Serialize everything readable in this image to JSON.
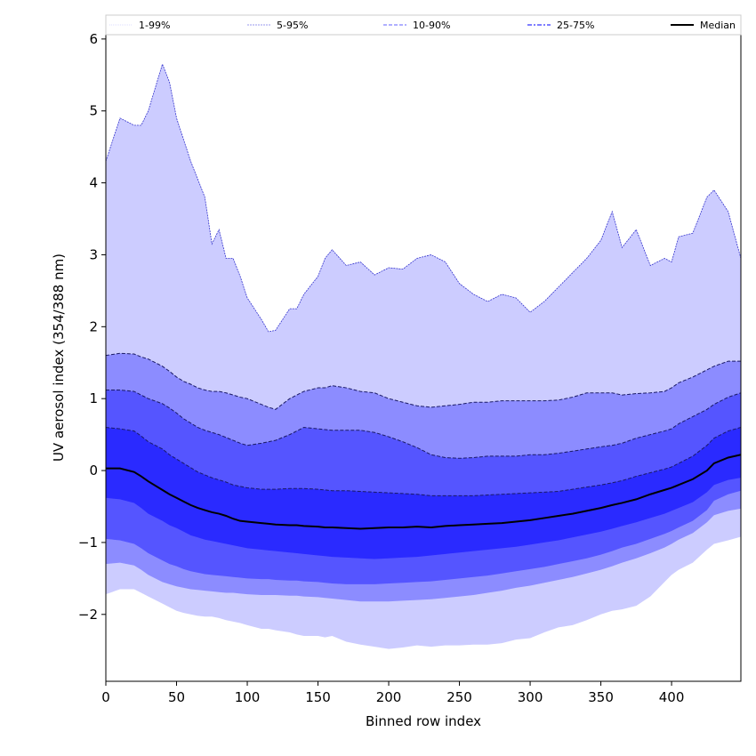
{
  "chart_data": {
    "type": "area",
    "title": "",
    "xlabel": "Binned row index",
    "ylabel": "UV aerosol index (354/388 nm)",
    "xlim": [
      0,
      449
    ],
    "ylim": [
      -2.93,
      6.06
    ],
    "xticks": [
      0,
      50,
      100,
      150,
      200,
      250,
      300,
      350,
      400
    ],
    "yticks": [
      -2,
      -1,
      0,
      1,
      2,
      3,
      4,
      5,
      6
    ],
    "grid": false,
    "legend": {
      "placement": "top",
      "entries": [
        {
          "label": "1-99%",
          "color": "#ccccff",
          "style": "dotted"
        },
        {
          "label": "5-95%",
          "color": "#9999ee",
          "style": "dashed-thin"
        },
        {
          "label": "10-90%",
          "color": "#8080ff",
          "style": "dashed"
        },
        {
          "label": "25-75%",
          "color": "#5555ff",
          "style": "dashdot"
        },
        {
          "label": "Median",
          "color": "#000000",
          "style": "solid"
        }
      ]
    },
    "band_colors": [
      "#ccccff",
      "#8c8cff",
      "#5555ff",
      "#2a2aff"
    ],
    "x": [
      0,
      10,
      20,
      25,
      30,
      40,
      45,
      50,
      55,
      60,
      65,
      70,
      75,
      80,
      85,
      90,
      95,
      100,
      110,
      115,
      120,
      130,
      135,
      140,
      150,
      155,
      160,
      170,
      180,
      190,
      200,
      210,
      220,
      230,
      240,
      250,
      260,
      270,
      280,
      290,
      300,
      310,
      320,
      330,
      340,
      350,
      358,
      365,
      375,
      385,
      395,
      400,
      405,
      415,
      425,
      430,
      440,
      449
    ],
    "series": [
      {
        "name": "p99",
        "values": [
          4.3,
          4.9,
          4.8,
          4.8,
          5.0,
          5.65,
          5.4,
          4.9,
          4.6,
          4.3,
          4.05,
          3.8,
          3.15,
          3.35,
          2.95,
          2.95,
          2.7,
          2.4,
          2.1,
          1.93,
          1.95,
          2.25,
          2.25,
          2.45,
          2.7,
          2.95,
          3.07,
          2.85,
          2.9,
          2.72,
          2.82,
          2.8,
          2.95,
          3.0,
          2.9,
          2.6,
          2.45,
          2.35,
          2.45,
          2.4,
          2.2,
          2.35,
          2.55,
          2.75,
          2.95,
          3.2,
          3.6,
          3.1,
          3.35,
          2.85,
          2.95,
          2.9,
          3.25,
          3.3,
          3.8,
          3.9,
          3.6,
          2.95
        ]
      },
      {
        "name": "p95",
        "values": [
          1.6,
          1.63,
          1.62,
          1.58,
          1.55,
          1.45,
          1.38,
          1.3,
          1.24,
          1.2,
          1.15,
          1.12,
          1.1,
          1.1,
          1.08,
          1.05,
          1.02,
          1.0,
          0.92,
          0.88,
          0.85,
          1.0,
          1.05,
          1.1,
          1.15,
          1.15,
          1.18,
          1.15,
          1.1,
          1.08,
          1.0,
          0.95,
          0.9,
          0.88,
          0.9,
          0.92,
          0.95,
          0.95,
          0.97,
          0.97,
          0.97,
          0.97,
          0.98,
          1.02,
          1.08,
          1.08,
          1.08,
          1.05,
          1.07,
          1.08,
          1.1,
          1.15,
          1.22,
          1.3,
          1.4,
          1.45,
          1.52,
          1.52
        ]
      },
      {
        "name": "p90",
        "values": [
          1.12,
          1.12,
          1.1,
          1.05,
          1.0,
          0.93,
          0.87,
          0.8,
          0.72,
          0.66,
          0.6,
          0.56,
          0.53,
          0.5,
          0.46,
          0.42,
          0.38,
          0.35,
          0.38,
          0.4,
          0.42,
          0.5,
          0.55,
          0.6,
          0.58,
          0.57,
          0.56,
          0.56,
          0.56,
          0.53,
          0.47,
          0.4,
          0.32,
          0.22,
          0.18,
          0.17,
          0.18,
          0.2,
          0.2,
          0.2,
          0.22,
          0.22,
          0.24,
          0.27,
          0.3,
          0.33,
          0.35,
          0.38,
          0.45,
          0.5,
          0.55,
          0.58,
          0.65,
          0.75,
          0.85,
          0.92,
          1.02,
          1.08
        ]
      },
      {
        "name": "p75",
        "values": [
          0.6,
          0.58,
          0.55,
          0.48,
          0.4,
          0.3,
          0.22,
          0.16,
          0.1,
          0.04,
          -0.02,
          -0.06,
          -0.1,
          -0.13,
          -0.16,
          -0.2,
          -0.22,
          -0.24,
          -0.26,
          -0.26,
          -0.26,
          -0.25,
          -0.25,
          -0.25,
          -0.26,
          -0.27,
          -0.28,
          -0.28,
          -0.29,
          -0.3,
          -0.31,
          -0.32,
          -0.33,
          -0.35,
          -0.35,
          -0.35,
          -0.35,
          -0.34,
          -0.33,
          -0.32,
          -0.31,
          -0.3,
          -0.29,
          -0.26,
          -0.23,
          -0.2,
          -0.17,
          -0.14,
          -0.08,
          -0.03,
          0.02,
          0.05,
          0.1,
          0.2,
          0.35,
          0.45,
          0.55,
          0.6
        ]
      },
      {
        "name": "median",
        "values": [
          0.03,
          0.03,
          -0.02,
          -0.08,
          -0.15,
          -0.27,
          -0.33,
          -0.38,
          -0.43,
          -0.48,
          -0.52,
          -0.55,
          -0.58,
          -0.6,
          -0.63,
          -0.67,
          -0.7,
          -0.71,
          -0.73,
          -0.74,
          -0.75,
          -0.76,
          -0.76,
          -0.77,
          -0.78,
          -0.79,
          -0.79,
          -0.8,
          -0.81,
          -0.8,
          -0.79,
          -0.79,
          -0.78,
          -0.79,
          -0.77,
          -0.76,
          -0.75,
          -0.74,
          -0.73,
          -0.71,
          -0.69,
          -0.66,
          -0.63,
          -0.6,
          -0.56,
          -0.52,
          -0.48,
          -0.45,
          -0.4,
          -0.33,
          -0.27,
          -0.24,
          -0.2,
          -0.12,
          0.0,
          0.1,
          0.18,
          0.22
        ]
      },
      {
        "name": "p25",
        "values": [
          -0.38,
          -0.4,
          -0.45,
          -0.52,
          -0.6,
          -0.7,
          -0.76,
          -0.8,
          -0.85,
          -0.9,
          -0.93,
          -0.96,
          -0.98,
          -1.0,
          -1.02,
          -1.04,
          -1.06,
          -1.08,
          -1.1,
          -1.11,
          -1.12,
          -1.14,
          -1.15,
          -1.16,
          -1.18,
          -1.19,
          -1.2,
          -1.21,
          -1.22,
          -1.23,
          -1.22,
          -1.21,
          -1.2,
          -1.18,
          -1.16,
          -1.14,
          -1.12,
          -1.1,
          -1.08,
          -1.06,
          -1.03,
          -1.0,
          -0.97,
          -0.93,
          -0.89,
          -0.85,
          -0.81,
          -0.77,
          -0.72,
          -0.66,
          -0.6,
          -0.56,
          -0.52,
          -0.44,
          -0.3,
          -0.2,
          -0.13,
          -0.1
        ]
      },
      {
        "name": "p10",
        "values": [
          -0.95,
          -0.97,
          -1.02,
          -1.08,
          -1.15,
          -1.25,
          -1.3,
          -1.33,
          -1.37,
          -1.4,
          -1.42,
          -1.44,
          -1.45,
          -1.46,
          -1.47,
          -1.48,
          -1.49,
          -1.5,
          -1.51,
          -1.51,
          -1.52,
          -1.53,
          -1.53,
          -1.54,
          -1.55,
          -1.56,
          -1.57,
          -1.58,
          -1.58,
          -1.58,
          -1.57,
          -1.56,
          -1.55,
          -1.54,
          -1.52,
          -1.5,
          -1.48,
          -1.46,
          -1.43,
          -1.4,
          -1.37,
          -1.34,
          -1.3,
          -1.26,
          -1.22,
          -1.17,
          -1.12,
          -1.07,
          -1.02,
          -0.95,
          -0.88,
          -0.84,
          -0.79,
          -0.7,
          -0.55,
          -0.42,
          -0.33,
          -0.28
        ]
      },
      {
        "name": "p5",
        "values": [
          -1.3,
          -1.28,
          -1.32,
          -1.38,
          -1.45,
          -1.55,
          -1.58,
          -1.61,
          -1.63,
          -1.65,
          -1.66,
          -1.67,
          -1.68,
          -1.69,
          -1.7,
          -1.7,
          -1.71,
          -1.72,
          -1.73,
          -1.73,
          -1.73,
          -1.74,
          -1.74,
          -1.75,
          -1.76,
          -1.77,
          -1.78,
          -1.8,
          -1.82,
          -1.82,
          -1.82,
          -1.81,
          -1.8,
          -1.79,
          -1.77,
          -1.75,
          -1.73,
          -1.7,
          -1.67,
          -1.63,
          -1.6,
          -1.56,
          -1.52,
          -1.48,
          -1.43,
          -1.38,
          -1.33,
          -1.28,
          -1.22,
          -1.15,
          -1.07,
          -1.02,
          -0.96,
          -0.87,
          -0.72,
          -0.62,
          -0.56,
          -0.53
        ]
      },
      {
        "name": "p1",
        "values": [
          -1.72,
          -1.65,
          -1.65,
          -1.7,
          -1.75,
          -1.85,
          -1.9,
          -1.95,
          -1.98,
          -2.0,
          -2.02,
          -2.03,
          -2.03,
          -2.05,
          -2.08,
          -2.1,
          -2.12,
          -2.15,
          -2.2,
          -2.2,
          -2.22,
          -2.25,
          -2.28,
          -2.3,
          -2.3,
          -2.32,
          -2.3,
          -2.38,
          -2.42,
          -2.45,
          -2.48,
          -2.46,
          -2.43,
          -2.45,
          -2.43,
          -2.43,
          -2.42,
          -2.42,
          -2.4,
          -2.35,
          -2.33,
          -2.25,
          -2.18,
          -2.15,
          -2.08,
          -2.0,
          -1.95,
          -1.93,
          -1.88,
          -1.75,
          -1.55,
          -1.45,
          -1.38,
          -1.28,
          -1.1,
          -1.02,
          -0.97,
          -0.92
        ]
      }
    ]
  }
}
